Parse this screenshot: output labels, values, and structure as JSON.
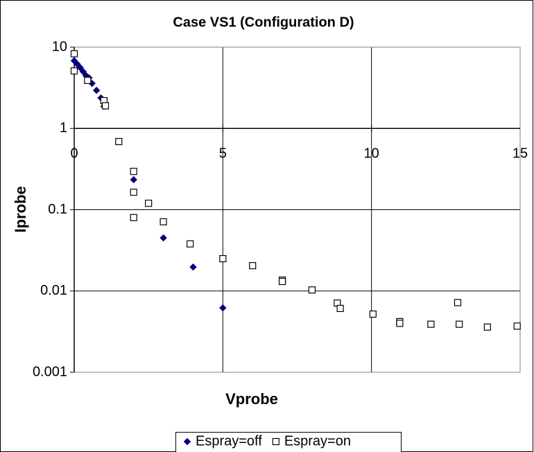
{
  "chart_data": {
    "type": "scatter",
    "title": "Case VS1 (Configuration D)",
    "x_label": "Vprobe",
    "y_label": "Iprobe",
    "xlim": [
      0,
      15
    ],
    "xticks": [
      0,
      5,
      10,
      15
    ],
    "ylim": [
      0.001,
      10
    ],
    "yticks": [
      10,
      1,
      0.1,
      0.01,
      0.001
    ],
    "y_log": true,
    "grid": true,
    "x_axis_crosses_y": 1,
    "legend": "bottom",
    "series": [
      {
        "name": "Espray=off",
        "color": "#000080",
        "marker": "diamond",
        "x": [
          0,
          0.1,
          0.2,
          0.3,
          0.4,
          0.5,
          0.6,
          0.75,
          0.9,
          1.0,
          2,
          3,
          4,
          5
        ],
        "values": [
          6.8,
          6.2,
          5.6,
          5.0,
          4.45,
          4.19,
          3.58,
          2.94,
          2.37,
          1.87,
          0.234,
          0.045,
          0.0197,
          0.0062
        ]
      },
      {
        "name": "Espray=on",
        "color": "#000000",
        "marker": "square",
        "x": [
          0,
          0,
          0.45,
          1.0,
          1.05,
          1.5,
          2,
          2,
          2,
          2.5,
          3,
          3.9,
          5,
          6,
          7,
          7,
          8,
          8.85,
          8.95,
          10.05,
          10.95,
          10.95,
          12,
          12.9,
          12.95,
          13.9,
          14.9
        ],
        "values": [
          8.3,
          5.1,
          3.9,
          2.2,
          1.9,
          0.69,
          0.296,
          0.164,
          0.08,
          0.12,
          0.071,
          0.038,
          0.025,
          0.0205,
          0.0136,
          0.0131,
          0.0103,
          0.0071,
          0.0061,
          0.0052,
          0.0042,
          0.004,
          0.0039,
          0.0072,
          0.0039,
          0.0036,
          0.0037
        ]
      }
    ]
  }
}
